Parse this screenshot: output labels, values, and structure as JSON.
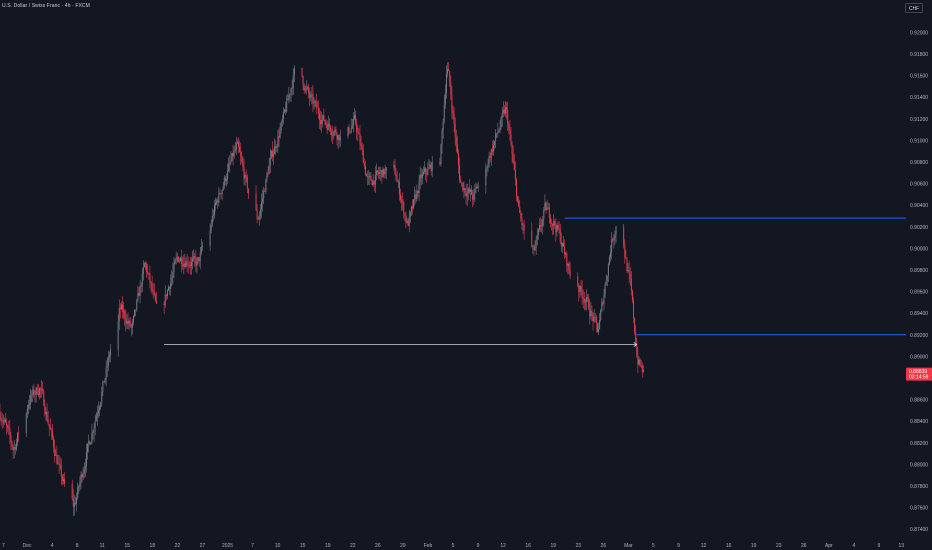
{
  "header": {
    "title": "U.S. Dollar / Swiss Franc · 4h · FXCM",
    "currency_button": "CHF"
  },
  "colors": {
    "background": "#131722",
    "up_candle": "#787b86",
    "down_candle": "#e53e52",
    "horizontal_line": "#2962ff",
    "range_line": "#d1d4dc",
    "price_label_bg": "#f23645",
    "axis_text": "#b2b5be"
  },
  "price_axis": {
    "ticks": [
      "0.92000",
      "0.91800",
      "0.91600",
      "0.91400",
      "0.91200",
      "0.91000",
      "0.90800",
      "0.90600",
      "0.90400",
      "0.90200",
      "0.90000",
      "0.89800",
      "0.89600",
      "0.89400",
      "0.89200",
      "0.89000",
      "0.88800",
      "0.88600",
      "0.88400",
      "0.88200",
      "0.88000",
      "0.87800",
      "0.87600",
      "0.87400"
    ],
    "current_price": "0.88839",
    "countdown": "03:14:59"
  },
  "time_axis": {
    "labels": [
      "7",
      "Dec",
      "4",
      "8",
      "11",
      "15",
      "18",
      "22",
      "27",
      "2025",
      "7",
      "10",
      "15",
      "19",
      "22",
      "26",
      "29",
      "Feb",
      "5",
      "9",
      "12",
      "16",
      "19",
      "23",
      "26",
      "Mar",
      "5",
      "9",
      "12",
      "16",
      "19",
      "23",
      "26",
      "Apr",
      "4",
      "9",
      "13"
    ]
  },
  "chart_data": {
    "type": "candlestick",
    "symbol": "U.S. Dollar / Swiss Franc",
    "interval": "4h",
    "source": "FXCM",
    "ylim": [
      0.873,
      0.923
    ],
    "x_range": [
      "2024-11-27",
      "2025-04-14"
    ],
    "horizontal_lines": [
      {
        "price": 0.9028,
        "from": "2025-02-21",
        "style": "solid",
        "color": "#2962ff"
      },
      {
        "price": 0.892,
        "from": "2025-03-04",
        "style": "solid",
        "color": "#2962ff"
      }
    ],
    "range_line": {
      "price": 0.8911,
      "from": "2024-12-22",
      "to": "2025-03-04",
      "color": "#d1d4dc"
    },
    "path": [
      {
        "date": "2024-11-27",
        "close": 0.8848
      },
      {
        "date": "2024-11-29",
        "close": 0.8813
      },
      {
        "date": "2024-12-01",
        "close": 0.8858
      },
      {
        "date": "2024-12-03",
        "close": 0.8872
      },
      {
        "date": "2024-12-06",
        "close": 0.8793
      },
      {
        "date": "2024-12-08",
        "close": 0.8755
      },
      {
        "date": "2024-12-10",
        "close": 0.8808
      },
      {
        "date": "2024-12-13",
        "close": 0.8883
      },
      {
        "date": "2024-12-15",
        "close": 0.8948
      },
      {
        "date": "2024-12-17",
        "close": 0.8924
      },
      {
        "date": "2024-12-19",
        "close": 0.8987
      },
      {
        "date": "2024-12-21",
        "close": 0.8935
      },
      {
        "date": "2024-12-24",
        "close": 0.8992
      },
      {
        "date": "2024-12-27",
        "close": 0.8985
      },
      {
        "date": "2024-12-30",
        "close": 0.9045
      },
      {
        "date": "2025-01-02",
        "close": 0.9095
      },
      {
        "date": "2025-01-05",
        "close": 0.902
      },
      {
        "date": "2025-01-07",
        "close": 0.908
      },
      {
        "date": "2025-01-09",
        "close": 0.9118
      },
      {
        "date": "2025-01-11",
        "close": 0.917
      },
      {
        "date": "2025-01-13",
        "close": 0.914
      },
      {
        "date": "2025-01-15",
        "close": 0.912
      },
      {
        "date": "2025-01-18",
        "close": 0.9102
      },
      {
        "date": "2025-01-20",
        "close": 0.9118
      },
      {
        "date": "2025-01-22",
        "close": 0.906
      },
      {
        "date": "2025-01-24",
        "close": 0.907
      },
      {
        "date": "2025-01-26",
        "close": 0.9072
      },
      {
        "date": "2025-01-28",
        "close": 0.902
      },
      {
        "date": "2025-01-30",
        "close": 0.9065
      },
      {
        "date": "2025-02-02",
        "close": 0.9085
      },
      {
        "date": "2025-02-03",
        "close": 0.9175
      },
      {
        "date": "2025-02-05",
        "close": 0.906
      },
      {
        "date": "2025-02-07",
        "close": 0.9047
      },
      {
        "date": "2025-02-10",
        "close": 0.9095
      },
      {
        "date": "2025-02-12",
        "close": 0.913
      },
      {
        "date": "2025-02-14",
        "close": 0.903
      },
      {
        "date": "2025-02-16",
        "close": 0.899
      },
      {
        "date": "2025-02-18",
        "close": 0.9038
      },
      {
        "date": "2025-02-20",
        "close": 0.9015
      },
      {
        "date": "2025-02-22",
        "close": 0.897
      },
      {
        "date": "2025-02-24",
        "close": 0.8955
      },
      {
        "date": "2025-02-26",
        "close": 0.8922
      },
      {
        "date": "2025-02-28",
        "close": 0.9005
      },
      {
        "date": "2025-03-01",
        "close": 0.9028
      },
      {
        "date": "2025-03-03",
        "close": 0.8962
      },
      {
        "date": "2025-03-04",
        "close": 0.8895
      },
      {
        "date": "2025-03-05",
        "close": 0.8884
      }
    ]
  }
}
